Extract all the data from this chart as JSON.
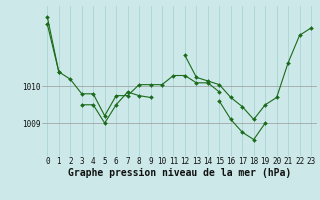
{
  "background_color": "#cce8e8",
  "grid_color": "#aad4d4",
  "hgrid_color": "#999999",
  "line_color": "#1a6b1a",
  "marker_color": "#1a6b1a",
  "xlabel": "Graphe pression niveau de la mer (hPa)",
  "xlabel_fontsize": 7.0,
  "tick_label_fontsize": 5.5,
  "ytick_labels": [
    "1009",
    "1010"
  ],
  "ytick_values": [
    1009.0,
    1010.0
  ],
  "ylim": [
    1008.1,
    1012.2
  ],
  "xlim": [
    -0.5,
    23.5
  ],
  "series": [
    [
      1011.7,
      1010.4,
      1010.2,
      1009.8,
      1009.8,
      1009.2,
      1009.75,
      1009.75,
      1010.05,
      1010.05,
      1010.05,
      1010.3,
      1010.3,
      1010.1,
      1010.1,
      1009.85,
      null,
      null,
      null,
      null,
      null,
      null,
      null,
      null
    ],
    [
      null,
      null,
      null,
      1009.5,
      1009.5,
      1009.0,
      1009.5,
      1009.85,
      1009.75,
      1009.7,
      null,
      null,
      null,
      null,
      null,
      null,
      null,
      null,
      null,
      null,
      null,
      null,
      null,
      null
    ],
    [
      null,
      null,
      null,
      null,
      null,
      null,
      null,
      null,
      null,
      null,
      null,
      null,
      1010.85,
      1010.25,
      1010.15,
      1010.05,
      1009.7,
      1009.45,
      1009.1,
      1009.5,
      1009.7,
      1010.65,
      1011.4,
      1011.6
    ],
    [
      1011.9,
      1010.4,
      null,
      null,
      null,
      null,
      null,
      null,
      null,
      null,
      null,
      null,
      null,
      null,
      null,
      1009.6,
      1009.1,
      1008.75,
      1008.55,
      1009.0,
      null,
      null,
      null,
      null
    ]
  ]
}
